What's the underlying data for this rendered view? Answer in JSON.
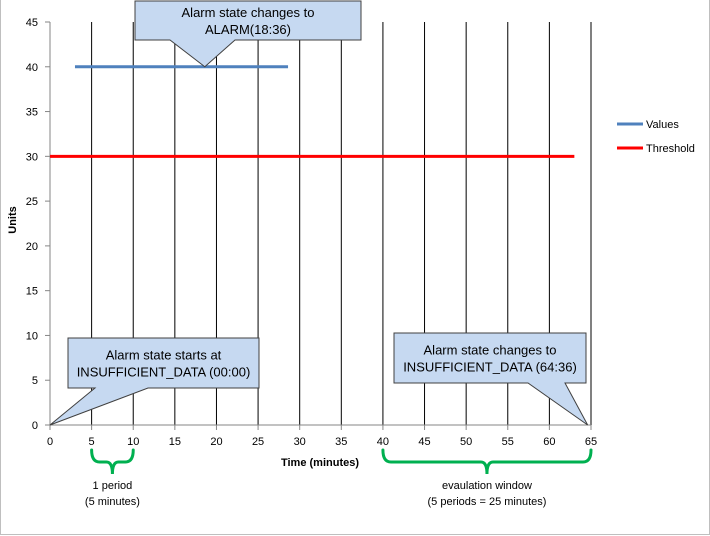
{
  "chart_data": {
    "type": "line",
    "xlabel": "Time (minutes)",
    "ylabel": "Units",
    "xlim": [
      0,
      65
    ],
    "ylim": [
      0,
      45
    ],
    "x_ticks": [
      0,
      5,
      10,
      15,
      20,
      25,
      30,
      35,
      40,
      45,
      50,
      55,
      60,
      65
    ],
    "y_ticks": [
      0,
      5,
      10,
      15,
      20,
      25,
      30,
      35,
      40,
      45
    ],
    "grid": "vertical",
    "legend_position": "right",
    "series": [
      {
        "name": "Values",
        "color": "#4f81bd",
        "points": [
          [
            3,
            40
          ],
          [
            28.6,
            40
          ]
        ]
      },
      {
        "name": "Threshold",
        "color": "#ff0000",
        "points": [
          [
            0,
            30
          ],
          [
            63,
            30
          ]
        ]
      }
    ],
    "annotations": [
      {
        "lines": [
          "Alarm state changes to",
          "ALARM(18:36)"
        ],
        "pointer": [
          18.6,
          40
        ]
      },
      {
        "lines": [
          "Alarm state starts at",
          "INSUFFICIENT_DATA (00:00)"
        ],
        "pointer": [
          0,
          0
        ]
      },
      {
        "lines": [
          "Alarm state changes to",
          "INSUFFICIENT_DATA (64:36)"
        ],
        "pointer": [
          64.6,
          0
        ]
      }
    ],
    "braces": [
      {
        "x_range": [
          5,
          10
        ],
        "label": [
          "1 period",
          "(5 minutes)"
        ],
        "color": "#00b050"
      },
      {
        "x_range": [
          40,
          65
        ],
        "label": [
          "evaulation window",
          "(5 periods = 25 minutes)"
        ],
        "color": "#00b050"
      }
    ]
  }
}
